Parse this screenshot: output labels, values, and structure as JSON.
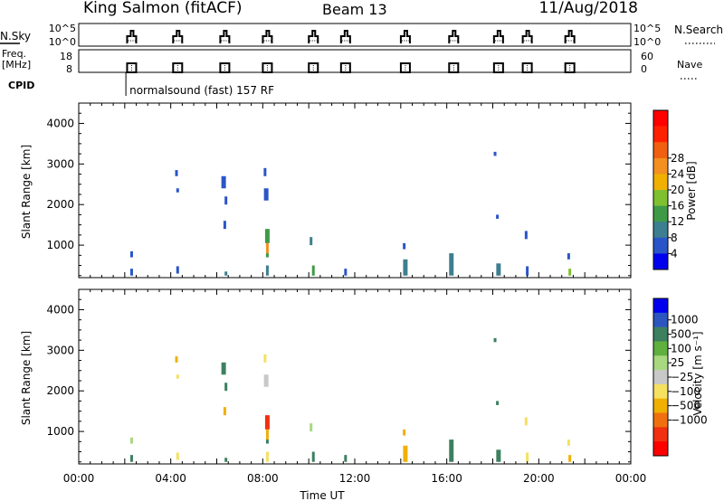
{
  "header": {
    "site": "King Salmon (fitACF)",
    "beam": "Beam 13",
    "date": "11/Aug/2018"
  },
  "status_panels": {
    "nsky_label": "N.Sky",
    "nsky_ticks": [
      "10^5",
      "10^0"
    ],
    "nsearch_label": "N.Search",
    "nsearch_ticks": [
      "10^5",
      "10^0"
    ],
    "freq_label_1": "Freq.",
    "freq_label_2": "[MHz]",
    "freq_ticks": [
      "18",
      "8"
    ],
    "nave_label": "Nave",
    "nave_ticks": [
      "60",
      "0"
    ],
    "cpid_label": "CPID",
    "cpid_text": "normalsound (fast) 157 RF",
    "cpid_hour": 2.05,
    "scan_hours": [
      2.3,
      4.3,
      6.35,
      8.2,
      10.2,
      11.6,
      14.2,
      16.3,
      18.25,
      19.5,
      21.35
    ]
  },
  "chart_data": [
    {
      "type": "heatmap",
      "name": "power",
      "xlabel": "Time UT",
      "ylabel": "Slant Range [km]",
      "xlim": [
        0,
        24
      ],
      "ylim": [
        200,
        4500
      ],
      "x_ticks": [
        "00:00",
        "04:00",
        "08:00",
        "12:00",
        "16:00",
        "20:00",
        "00:00"
      ],
      "y_ticks": [
        "1000",
        "2000",
        "3000",
        "4000"
      ],
      "colorbar": {
        "label": "Power [dB]",
        "tick_labels": [
          "4",
          "8",
          "12",
          "16",
          "20",
          "24",
          "28"
        ],
        "colors": [
          "#0000ee",
          "#2a55c8",
          "#3d7f90",
          "#3f9a48",
          "#7fc030",
          "#f0b000",
          "#f39020",
          "#f06010",
          "#ff2000",
          "#ff0000"
        ]
      },
      "echoes": [
        {
          "t": 2.3,
          "r0": 250,
          "r1": 420,
          "v": 6
        },
        {
          "t": 2.3,
          "r0": 700,
          "r1": 850,
          "v": 5
        },
        {
          "t": 4.25,
          "r0": 2700,
          "r1": 2850,
          "v": 5
        },
        {
          "t": 4.3,
          "r0": 2300,
          "r1": 2400,
          "v": 6
        },
        {
          "t": 4.3,
          "r0": 300,
          "r1": 480,
          "v": 6
        },
        {
          "t": 6.3,
          "r0": 2400,
          "r1": 2700,
          "v": 7
        },
        {
          "t": 6.4,
          "r0": 2000,
          "r1": 2200,
          "v": 7
        },
        {
          "t": 6.35,
          "r0": 1400,
          "r1": 1600,
          "v": 6
        },
        {
          "t": 6.4,
          "r0": 250,
          "r1": 350,
          "v": 8
        },
        {
          "t": 8.1,
          "r0": 2700,
          "r1": 2900,
          "v": 6
        },
        {
          "t": 8.15,
          "r0": 2100,
          "r1": 2400,
          "v": 7
        },
        {
          "t": 8.2,
          "r0": 1050,
          "r1": 1400,
          "v": 15
        },
        {
          "t": 8.2,
          "r0": 800,
          "r1": 1050,
          "v": 26
        },
        {
          "t": 8.2,
          "r0": 700,
          "r1": 800,
          "v": 14
        },
        {
          "t": 8.2,
          "r0": 250,
          "r1": 500,
          "v": 10
        },
        {
          "t": 10.1,
          "r0": 1000,
          "r1": 1200,
          "v": 10
        },
        {
          "t": 10.2,
          "r0": 250,
          "r1": 500,
          "v": 12
        },
        {
          "t": 11.6,
          "r0": 250,
          "r1": 420,
          "v": 6
        },
        {
          "t": 14.15,
          "r0": 900,
          "r1": 1050,
          "v": 7
        },
        {
          "t": 14.2,
          "r0": 250,
          "r1": 650,
          "v": 8
        },
        {
          "t": 16.2,
          "r0": 250,
          "r1": 800,
          "v": 9
        },
        {
          "t": 18.1,
          "r0": 3200,
          "r1": 3300,
          "v": 5
        },
        {
          "t": 18.2,
          "r0": 1650,
          "r1": 1750,
          "v": 5
        },
        {
          "t": 18.25,
          "r0": 250,
          "r1": 550,
          "v": 9
        },
        {
          "t": 19.45,
          "r0": 1150,
          "r1": 1350,
          "v": 6
        },
        {
          "t": 19.5,
          "r0": 250,
          "r1": 480,
          "v": 7
        },
        {
          "t": 21.3,
          "r0": 650,
          "r1": 800,
          "v": 6
        },
        {
          "t": 21.35,
          "r0": 250,
          "r1": 420,
          "v": 18
        }
      ]
    },
    {
      "type": "heatmap",
      "name": "velocity",
      "xlabel": "Time UT",
      "ylabel": "Slant Range [km]",
      "xlim": [
        0,
        24
      ],
      "ylim": [
        200,
        4500
      ],
      "x_ticks": [
        "00:00",
        "04:00",
        "08:00",
        "12:00",
        "16:00",
        "20:00",
        "00:00"
      ],
      "y_ticks": [
        "1000",
        "2000",
        "3000",
        "4000"
      ],
      "colorbar": {
        "label": "Velocity [m s⁻¹]",
        "tick_labels": [
          "1000",
          "500",
          "100",
          "25",
          "−25",
          "−100",
          "−500",
          "−1000"
        ],
        "colors": [
          "#0000ee",
          "#2d55c0",
          "#3d8060",
          "#60b040",
          "#a8d880",
          "#c8c8c8",
          "#f5e060",
          "#f0b000",
          "#f07010",
          "#f03010",
          "#ff0000"
        ]
      },
      "echoes": [
        {
          "t": 2.3,
          "r0": 250,
          "r1": 420,
          "v": 150
        },
        {
          "t": 2.3,
          "r0": 700,
          "r1": 850,
          "v": 50
        },
        {
          "t": 4.25,
          "r0": 2700,
          "r1": 2850,
          "v": -300
        },
        {
          "t": 4.3,
          "r0": 2300,
          "r1": 2400,
          "v": -60
        },
        {
          "t": 4.3,
          "r0": 300,
          "r1": 480,
          "v": -60
        },
        {
          "t": 6.3,
          "r0": 2400,
          "r1": 2700,
          "v": 300
        },
        {
          "t": 6.4,
          "r0": 2000,
          "r1": 2200,
          "v": 400
        },
        {
          "t": 6.35,
          "r0": 1400,
          "r1": 1600,
          "v": -300
        },
        {
          "t": 6.4,
          "r0": 250,
          "r1": 350,
          "v": 150
        },
        {
          "t": 8.1,
          "r0": 2700,
          "r1": 2900,
          "v": -60
        },
        {
          "t": 8.15,
          "r0": 2100,
          "r1": 2400,
          "v": 0
        },
        {
          "t": 8.2,
          "r0": 1050,
          "r1": 1400,
          "v": -600
        },
        {
          "t": 8.2,
          "r0": 800,
          "r1": 1050,
          "v": -200
        },
        {
          "t": 8.2,
          "r0": 700,
          "r1": 800,
          "v": 150
        },
        {
          "t": 8.2,
          "r0": 250,
          "r1": 500,
          "v": -60
        },
        {
          "t": 10.1,
          "r0": 1000,
          "r1": 1200,
          "v": 60
        },
        {
          "t": 10.2,
          "r0": 250,
          "r1": 500,
          "v": 150
        },
        {
          "t": 11.6,
          "r0": 250,
          "r1": 420,
          "v": 150
        },
        {
          "t": 14.15,
          "r0": 900,
          "r1": 1050,
          "v": -150
        },
        {
          "t": 14.2,
          "r0": 250,
          "r1": 650,
          "v": -120
        },
        {
          "t": 16.2,
          "r0": 250,
          "r1": 800,
          "v": 150
        },
        {
          "t": 18.1,
          "r0": 3200,
          "r1": 3300,
          "v": 300
        },
        {
          "t": 18.2,
          "r0": 1650,
          "r1": 1750,
          "v": 300
        },
        {
          "t": 18.25,
          "r0": 250,
          "r1": 550,
          "v": 150
        },
        {
          "t": 19.45,
          "r0": 1150,
          "r1": 1350,
          "v": -60
        },
        {
          "t": 19.5,
          "r0": 250,
          "r1": 480,
          "v": -60
        },
        {
          "t": 21.3,
          "r0": 650,
          "r1": 800,
          "v": -60
        },
        {
          "t": 21.35,
          "r0": 250,
          "r1": 420,
          "v": -120
        }
      ]
    }
  ]
}
